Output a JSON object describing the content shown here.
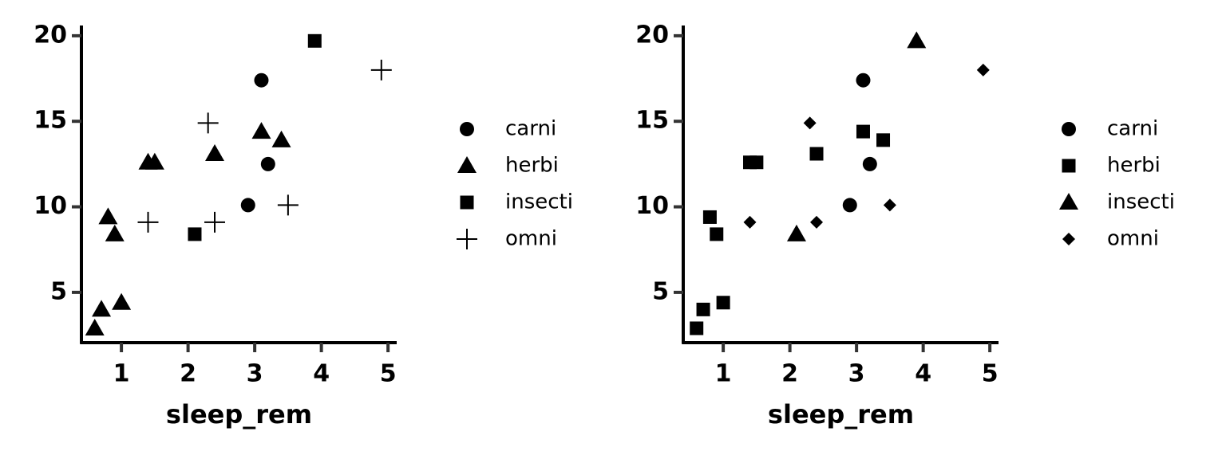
{
  "chart_data": [
    {
      "type": "scatter",
      "x_label": "sleep_rem",
      "xlim": [
        0.4,
        5.13
      ],
      "ylim": [
        2.06,
        20.6
      ],
      "xticks": [
        1,
        2,
        3,
        4,
        5
      ],
      "yticks": [
        5,
        10,
        15,
        20
      ],
      "series": [
        {
          "name": "carni",
          "color": "#000000",
          "marker": "circle",
          "x": [
            3.1,
            3.2,
            2.9
          ],
          "values": [
            17.4,
            12.5,
            10.1
          ]
        },
        {
          "name": "herbi",
          "color": "#000000",
          "marker": "triangle",
          "x": [
            1.4,
            1.5,
            3.1,
            3.4,
            2.4,
            0.8,
            0.9,
            0.7,
            1.0,
            0.6
          ],
          "values": [
            12.6,
            12.6,
            14.4,
            13.9,
            13.1,
            9.4,
            8.4,
            4.0,
            4.4,
            2.9
          ]
        },
        {
          "name": "insecti",
          "color": "#000000",
          "marker": "square",
          "x": [
            3.9,
            2.1
          ],
          "values": [
            19.7,
            8.4
          ]
        },
        {
          "name": "omni",
          "color": "#000000",
          "marker": "plus",
          "x": [
            2.3,
            1.4,
            2.4,
            4.9,
            3.5
          ],
          "values": [
            14.9,
            9.1,
            9.1,
            18.0,
            10.1
          ]
        }
      ]
    },
    {
      "type": "scatter",
      "x_label": "sleep_rem",
      "xlim": [
        0.4,
        5.13
      ],
      "ylim": [
        2.06,
        20.6
      ],
      "xticks": [
        1,
        2,
        3,
        4,
        5
      ],
      "yticks": [
        5,
        10,
        15,
        20
      ],
      "series": [
        {
          "name": "carni",
          "color": "#000000",
          "marker": "circle",
          "x": [
            3.1,
            3.2,
            2.9
          ],
          "values": [
            17.4,
            12.5,
            10.1
          ]
        },
        {
          "name": "herbi",
          "color": "#000000",
          "marker": "square",
          "x": [
            1.4,
            1.5,
            3.1,
            3.4,
            2.4,
            0.8,
            0.9,
            0.7,
            1.0,
            0.6
          ],
          "values": [
            12.6,
            12.6,
            14.4,
            13.9,
            13.1,
            9.4,
            8.4,
            4.0,
            4.4,
            2.9
          ]
        },
        {
          "name": "insecti",
          "color": "#000000",
          "marker": "triangle",
          "x": [
            3.9,
            2.1
          ],
          "values": [
            19.7,
            8.4
          ]
        },
        {
          "name": "omni",
          "color": "#000000",
          "marker": "diamond",
          "x": [
            2.3,
            1.4,
            2.4,
            4.9,
            3.5
          ],
          "values": [
            14.9,
            9.1,
            9.1,
            18.0,
            10.1
          ]
        }
      ]
    }
  ]
}
